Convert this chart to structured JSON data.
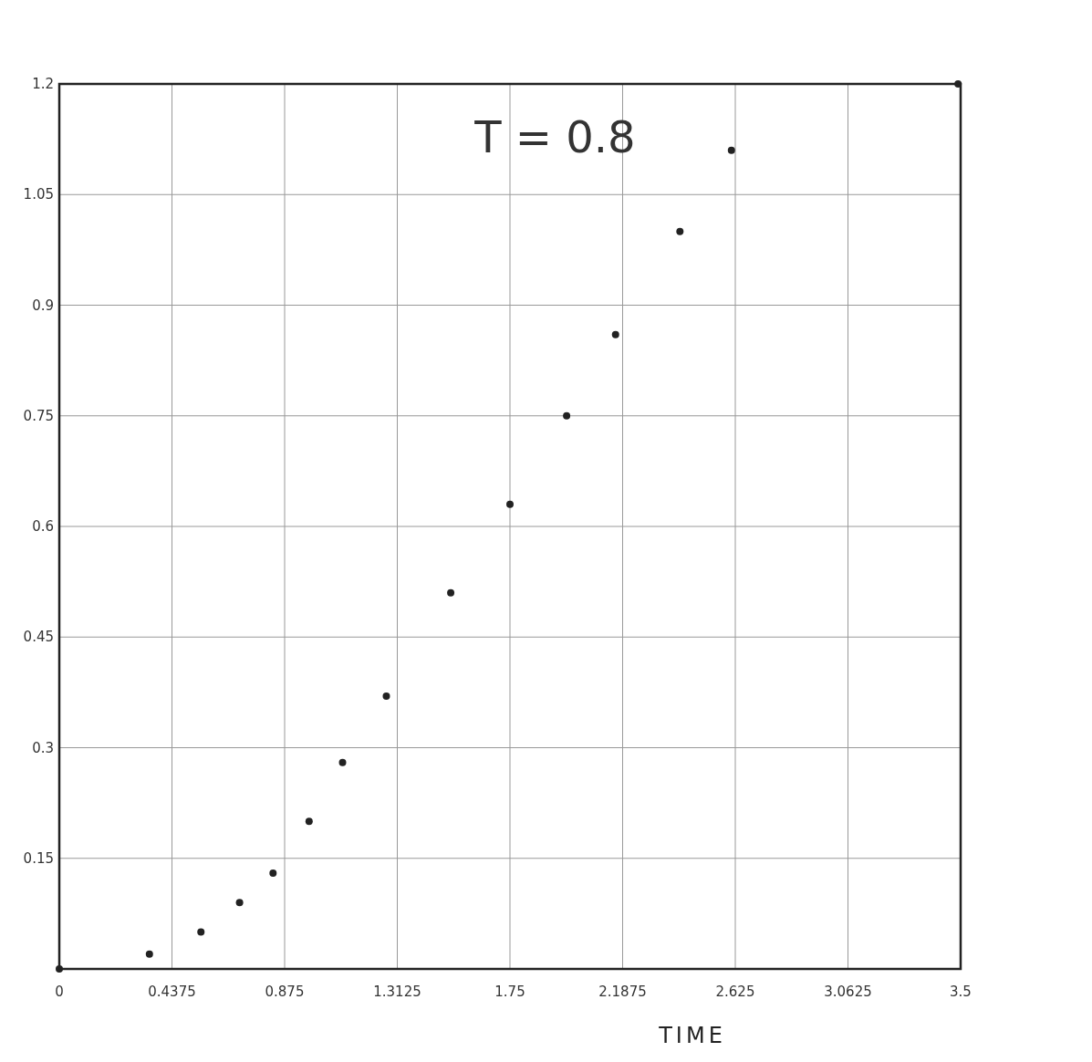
{
  "chart_data": {
    "type": "scatter",
    "title": "T = 0.8",
    "xlabel": "TIME",
    "x": [
      0,
      0.35,
      0.55,
      0.7,
      0.83,
      0.97,
      1.1,
      1.27,
      1.52,
      1.75,
      1.97,
      2.16,
      2.41,
      2.61,
      3.49
    ],
    "values": [
      0,
      0.02,
      0.05,
      0.09,
      0.13,
      0.2,
      0.28,
      0.37,
      0.51,
      0.63,
      0.75,
      0.86,
      1.0,
      1.11,
      1.2
    ],
    "color": "#222222",
    "marker": "circle",
    "grid": true,
    "xlim": [
      0,
      3.5
    ],
    "ylim": [
      0,
      1.2
    ],
    "xticks": [
      0,
      0.4375,
      0.875,
      1.3125,
      1.75,
      2.1875,
      2.625,
      3.0625,
      3.5
    ],
    "yticks": [
      0.15,
      0.3,
      0.45,
      0.6,
      0.75,
      0.9,
      1.05,
      1.2
    ]
  }
}
